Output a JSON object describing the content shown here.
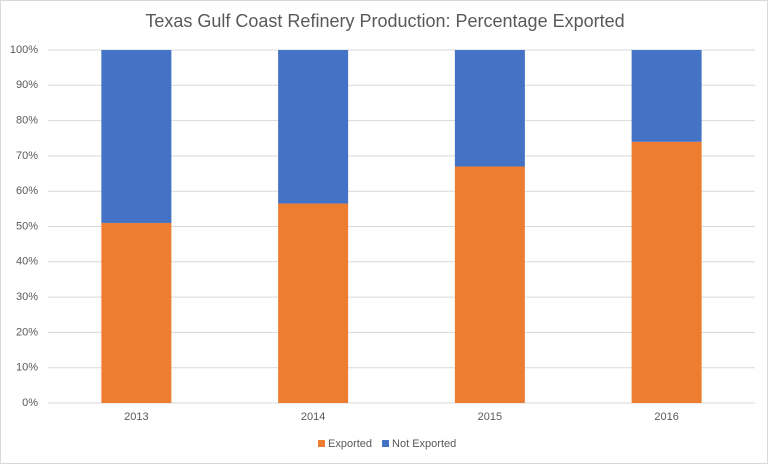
{
  "chart_data": {
    "type": "stacked_bar",
    "title": "Texas Gulf Coast Refinery Production: Percentage Exported",
    "categories": [
      "2013",
      "2014",
      "2015",
      "2016"
    ],
    "series": [
      {
        "name": "Exported",
        "color": "#ed7d31",
        "values": [
          51,
          56.5,
          67,
          74
        ]
      },
      {
        "name": "Not Exported",
        "color": "#4472c4",
        "values": [
          49,
          43.5,
          33,
          26
        ]
      }
    ],
    "ylim": [
      0,
      100
    ],
    "yticks": [
      {
        "value": 0,
        "label": "0%"
      },
      {
        "value": 10,
        "label": "10%"
      },
      {
        "value": 20,
        "label": "20%"
      },
      {
        "value": 30,
        "label": "30%"
      },
      {
        "value": 40,
        "label": "40%"
      },
      {
        "value": 50,
        "label": "50%"
      },
      {
        "value": 60,
        "label": "60%"
      },
      {
        "value": 70,
        "label": "70%"
      },
      {
        "value": 80,
        "label": "80%"
      },
      {
        "value": 90,
        "label": "90%"
      },
      {
        "value": 100,
        "label": "100%"
      }
    ],
    "grid": true,
    "legend": "bottom"
  }
}
